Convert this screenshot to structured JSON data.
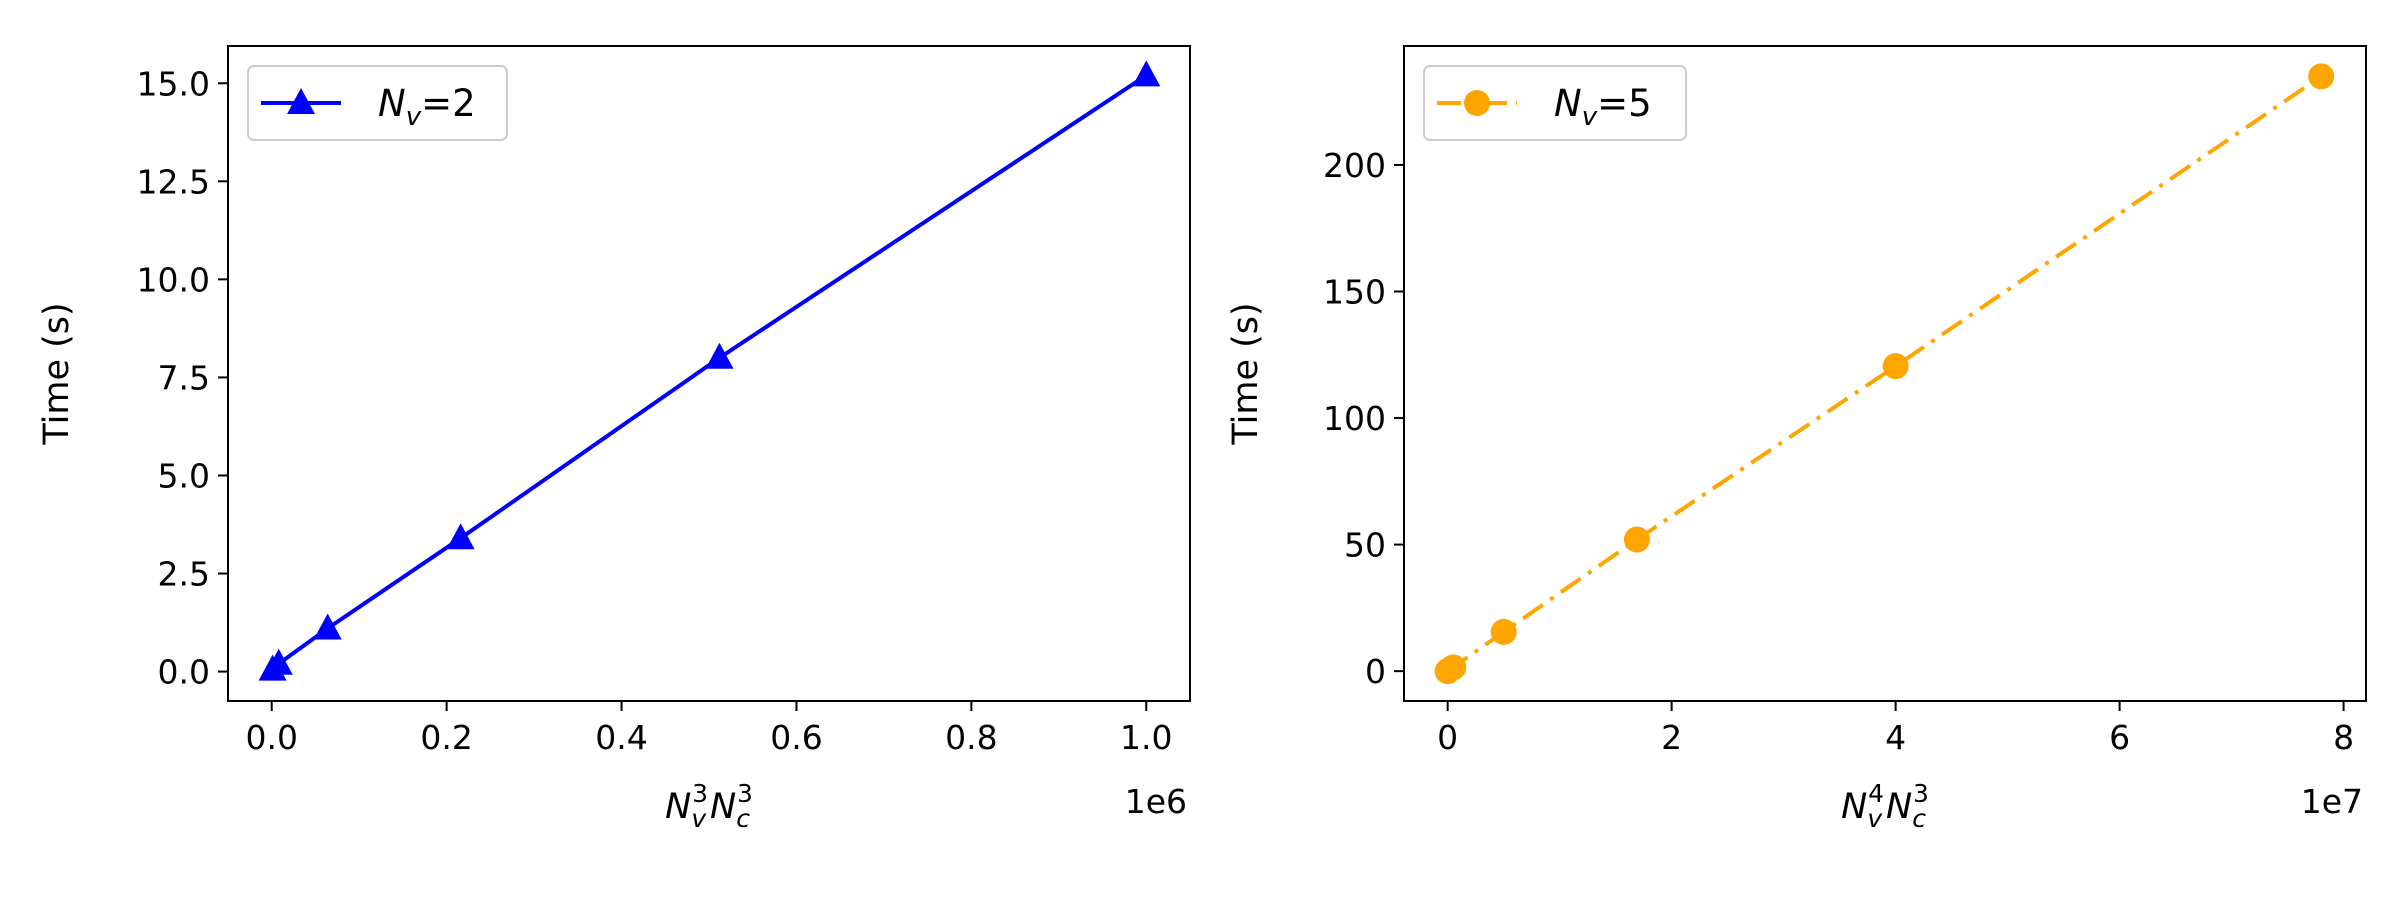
{
  "chart_data": [
    {
      "type": "line",
      "xlabel": {
        "base1": "N",
        "sub1": "v",
        "sup1": "3",
        "base2": "N",
        "sub2": "c",
        "sup2": "3"
      },
      "ylabel": "Time (s)",
      "x_offset_label": "1e6",
      "xlim": [
        -0.05,
        1.05
      ],
      "ylim": [
        -0.75,
        15.95
      ],
      "x_ticks": [
        0.0,
        0.2,
        0.4,
        0.6,
        0.8,
        1.0
      ],
      "x_tick_labels": [
        "0.0",
        "0.2",
        "0.4",
        "0.6",
        "0.8",
        "1.0"
      ],
      "y_ticks": [
        0.0,
        2.5,
        5.0,
        7.5,
        10.0,
        12.5,
        15.0
      ],
      "y_tick_labels": [
        "0.0",
        "2.5",
        "5.0",
        "7.5",
        "10.0",
        "12.5",
        "15.0"
      ],
      "grid": false,
      "legend_position": "upper-left",
      "series": [
        {
          "name_base": "N",
          "name_sub": "v",
          "name_suffix": "=2",
          "color": "#0000ff",
          "linestyle": "solid",
          "marker": "triangle",
          "x": [
            0.001,
            0.008,
            0.064,
            0.216,
            0.512,
            1.0
          ],
          "y": [
            0.05,
            0.2,
            1.1,
            3.4,
            8.0,
            15.2
          ]
        }
      ]
    },
    {
      "type": "line",
      "xlabel": {
        "base1": "N",
        "sub1": "v",
        "sup1": "4",
        "base2": "N",
        "sub2": "c",
        "sup2": "3"
      },
      "ylabel": "Time (s)",
      "x_offset_label": "1e7",
      "xlim": [
        -0.39,
        8.2
      ],
      "ylim": [
        -11.8,
        247.0
      ],
      "x_ticks": [
        0,
        2,
        4,
        6,
        8
      ],
      "x_tick_labels": [
        "0",
        "2",
        "4",
        "6",
        "8"
      ],
      "y_ticks": [
        0,
        50,
        100,
        150,
        200
      ],
      "y_tick_labels": [
        "0",
        "50",
        "100",
        "150",
        "200"
      ],
      "grid": false,
      "legend_position": "upper-left",
      "series": [
        {
          "name_base": "N",
          "name_sub": "v",
          "name_suffix": "=5",
          "color": "#ffa500",
          "linestyle": "dashdot",
          "marker": "circle",
          "x": [
            0.0,
            0.05,
            0.5,
            1.69,
            4.0,
            7.8
          ],
          "y": [
            0.0,
            1.5,
            15.5,
            52.0,
            120.5,
            235.0
          ]
        }
      ]
    }
  ]
}
